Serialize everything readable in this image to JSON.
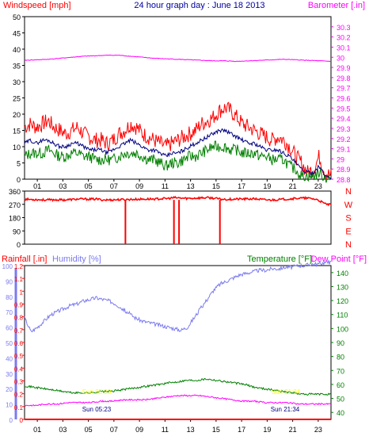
{
  "colors": {
    "wind": "#ff0000",
    "avg": "#000080",
    "gust": "#008000",
    "baro": "#ff00ff",
    "dir": "#ff0000",
    "rain": "#ff0000",
    "humidity": "#7b7bf0",
    "temp": "#008000",
    "dew": "#ff00ff",
    "title": "#0000a0",
    "sun": "#ffff00",
    "grid": "#000000"
  },
  "chart_data": [
    {
      "type": "line",
      "title": "24 hour graph day : June 18 2013",
      "ylabel_left": "Windspeed [mph]",
      "ylabel_right": "Barometer [.in]",
      "ylim_left": [
        0,
        50
      ],
      "ylim_right": [
        28.8,
        30.4
      ],
      "left_ticks": [
        "0",
        "5",
        "10",
        "15",
        "20",
        "25",
        "30",
        "35",
        "40",
        "45",
        "50"
      ],
      "right_ticks": [
        "28.8",
        "28.9",
        "29",
        "29.1",
        "29.2",
        "29.3",
        "29.4",
        "29.5",
        "29.6",
        "29.7",
        "29.8",
        "29.9",
        "30",
        "30.1",
        "30.2",
        "30.3"
      ],
      "x_ticks": [
        "01",
        "03",
        "05",
        "07",
        "09",
        "11",
        "13",
        "15",
        "17",
        "19",
        "21",
        "23"
      ],
      "series": [
        {
          "key": "gust",
          "values": [
            16,
            17,
            16,
            17,
            18,
            16,
            15,
            14,
            15,
            16,
            14,
            13,
            12,
            12,
            11,
            12,
            14,
            15,
            17,
            16,
            14,
            13,
            12,
            11,
            10,
            11,
            12,
            13,
            14,
            15,
            17,
            18,
            19,
            21,
            22,
            21,
            19,
            17,
            16,
            15,
            14,
            13,
            12,
            13,
            12,
            10,
            7,
            5,
            2,
            3,
            7,
            2,
            1
          ]
        },
        {
          "key": "avg",
          "values": [
            11,
            12,
            11,
            12,
            12,
            11,
            10,
            10,
            11,
            11,
            10,
            9,
            9,
            9,
            8,
            9,
            10,
            11,
            12,
            11,
            10,
            9,
            9,
            8,
            7,
            8,
            8,
            9,
            10,
            11,
            12,
            13,
            14,
            15,
            15,
            14,
            13,
            12,
            11,
            11,
            10,
            9,
            9,
            9,
            8,
            7,
            5,
            3,
            2,
            2,
            4,
            1,
            0.5
          ]
        },
        {
          "key": "wind",
          "values": [
            7,
            8,
            8,
            8,
            9,
            8,
            7,
            7,
            8,
            8,
            7,
            7,
            6,
            6,
            6,
            6,
            7,
            8,
            8,
            8,
            7,
            6,
            6,
            5,
            4,
            5,
            5,
            6,
            7,
            7,
            8,
            9,
            10,
            10,
            10,
            9,
            9,
            8,
            8,
            8,
            7,
            7,
            6,
            6,
            6,
            4,
            3,
            1,
            1,
            1,
            2,
            0.5,
            0
          ]
        },
        {
          "key": "baro",
          "values": [
            29.97,
            29.975,
            29.98,
            29.99,
            30.0,
            30.01,
            30.015,
            30.02,
            30.02,
            30.01,
            30.0,
            29.99,
            29.985,
            29.98,
            29.975,
            29.97,
            29.965,
            29.965,
            29.96,
            29.965,
            29.97,
            29.975,
            29.98,
            29.975,
            29.97,
            29.965,
            29.96
          ]
        }
      ]
    },
    {
      "type": "line",
      "ylabel_left": "Wind direction (deg)",
      "compass_labels": [
        "N",
        "W",
        "S",
        "E",
        "N"
      ],
      "ylim": [
        0,
        360
      ],
      "left_ticks": [
        "0",
        "90",
        "180",
        "270",
        "360"
      ],
      "series": [
        {
          "key": "dir",
          "values": [
            305,
            303,
            302,
            300,
            300,
            301,
            300,
            302,
            305,
            306,
            305,
            306,
            300,
            300,
            301,
            302,
            303,
            304,
            305,
            306,
            306,
            308,
            310,
            315,
            312,
            310,
            312,
            314,
            315,
            312,
            305,
            304,
            305,
            306,
            306,
            307,
            305,
            300,
            300,
            302,
            305,
            308,
            312,
            312,
            310,
            300,
            275,
            265
          ]
        }
      ],
      "dir_drops_hour": [
        7.9,
        11.7,
        12.1,
        15.3
      ]
    },
    {
      "type": "line",
      "ylabel_left_1": "Rainfall [.in]",
      "ylabel_left_2": "Humidity [%]",
      "ylabel_right_1": "Temperature [°F]",
      "ylabel_right_2": "Dew Point [°F]",
      "rain_ticks": [
        "0",
        "0.1",
        "0.2",
        "0.3",
        "0.4",
        "0.5",
        "0.6",
        "0.7",
        "0.8",
        "0.9",
        "1",
        "1.1",
        "1.2"
      ],
      "humidity_ticks": [
        "0",
        "10",
        "20",
        "30",
        "40",
        "50",
        "60",
        "70",
        "80",
        "90",
        "100"
      ],
      "temp_ticks": [
        "40",
        "50",
        "60",
        "70",
        "80",
        "90",
        "100",
        "110",
        "120",
        "130",
        "140"
      ],
      "ylim_rain": [
        0,
        1.2
      ],
      "ylim_humidity": [
        0,
        100
      ],
      "ylim_temp": [
        35,
        145
      ],
      "x_ticks": [
        "01",
        "03",
        "05",
        "07",
        "09",
        "11",
        "13",
        "15",
        "17",
        "19",
        "21",
        "23"
      ],
      "sun_labels": [
        "Sun 05:23",
        "Sun 21:34"
      ],
      "series": [
        {
          "key": "humidity",
          "values": [
            66,
            57,
            60,
            64,
            68,
            70,
            72,
            74,
            75,
            77,
            78,
            79,
            78,
            77,
            75,
            72,
            69,
            66,
            64,
            63,
            62,
            61,
            60,
            59,
            58,
            60,
            66,
            72,
            78,
            84,
            88,
            90,
            92,
            94,
            95,
            96,
            97,
            97,
            98,
            98,
            99,
            99,
            100,
            100,
            101,
            101,
            102,
            102
          ]
        },
        {
          "key": "temp",
          "values": [
            59,
            58,
            57,
            56,
            55,
            54,
            54,
            54,
            55,
            55,
            56,
            57,
            58,
            59,
            60,
            61,
            62,
            63,
            63,
            64,
            63,
            62,
            61,
            60,
            58,
            57,
            56,
            55,
            54,
            53,
            53,
            53,
            53
          ]
        },
        {
          "key": "dew",
          "values": [
            45,
            45,
            46,
            46,
            47,
            47,
            47,
            48,
            48,
            49,
            49,
            49,
            50,
            51,
            52,
            52,
            52,
            51,
            50,
            49,
            48,
            48,
            47,
            47,
            47,
            46,
            46,
            46,
            46
          ]
        },
        {
          "key": "rain",
          "values": [
            0,
            0,
            0,
            0,
            0,
            0,
            0,
            0,
            0,
            0,
            0,
            0,
            0,
            0
          ]
        }
      ]
    }
  ]
}
